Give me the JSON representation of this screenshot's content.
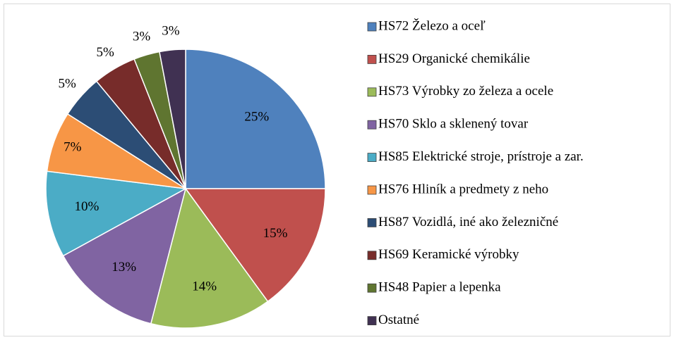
{
  "chart_data": {
    "type": "pie",
    "categories": [
      "HS72 Železo a oceľ",
      "HS29 Organické chemikálie",
      "HS73 Výrobky zo železa a ocele",
      "HS70 Sklo a sklenený tovar",
      "HS85 Elektrické stroje, prístroje a zar.",
      "HS76 Hliník a predmety z neho",
      "HS87 Vozidlá, iné ako železničné",
      "HS69 Keramické výrobky",
      "HS48 Papier a lepenka",
      "Ostatné"
    ],
    "values": [
      25,
      15,
      14,
      13,
      10,
      7,
      5,
      5,
      3,
      3
    ],
    "value_labels": [
      "25%",
      "15%",
      "14%",
      "13%",
      "10%",
      "7%",
      "5%",
      "5%",
      "3%",
      "3%"
    ],
    "colors": [
      "#4f81bd",
      "#c0504d",
      "#9bbb59",
      "#8064a2",
      "#4bacc6",
      "#f79646",
      "#2c4d75",
      "#772c2a",
      "#5f7530",
      "#403152"
    ],
    "legend": "right"
  }
}
